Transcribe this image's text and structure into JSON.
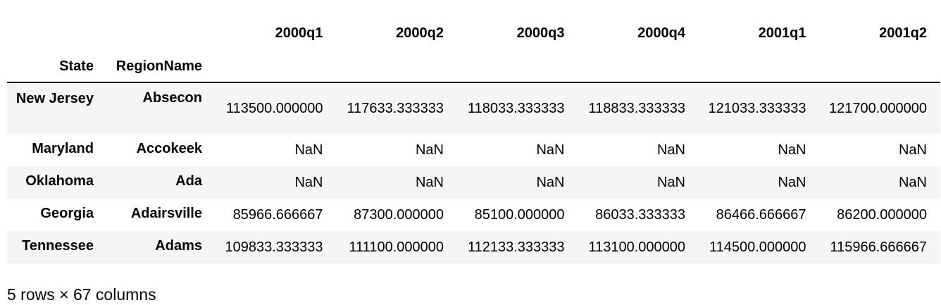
{
  "table": {
    "column_headers": [
      "2000q1",
      "2000q2",
      "2000q3",
      "2000q4",
      "2001q1",
      "2001q2"
    ],
    "index_headers": [
      "State",
      "RegionName"
    ],
    "rows": [
      {
        "state": "New Jersey",
        "region": "Absecon",
        "values": [
          "113500.000000",
          "117633.333333",
          "118033.333333",
          "118833.333333",
          "121033.333333",
          "121700.000000"
        ]
      },
      {
        "state": "Maryland",
        "region": "Accokeek",
        "values": [
          "NaN",
          "NaN",
          "NaN",
          "NaN",
          "NaN",
          "NaN"
        ]
      },
      {
        "state": "Oklahoma",
        "region": "Ada",
        "values": [
          "NaN",
          "NaN",
          "NaN",
          "NaN",
          "NaN",
          "NaN"
        ]
      },
      {
        "state": "Georgia",
        "region": "Adairsville",
        "values": [
          "85966.666667",
          "87300.000000",
          "85100.000000",
          "86033.333333",
          "86466.666667",
          "86200.000000"
        ]
      },
      {
        "state": "Tennessee",
        "region": "Adams",
        "values": [
          "109833.333333",
          "111100.000000",
          "112133.333333",
          "113100.000000",
          "114500.000000",
          "115966.666667"
        ]
      }
    ]
  },
  "footer": "5 rows × 67 columns"
}
